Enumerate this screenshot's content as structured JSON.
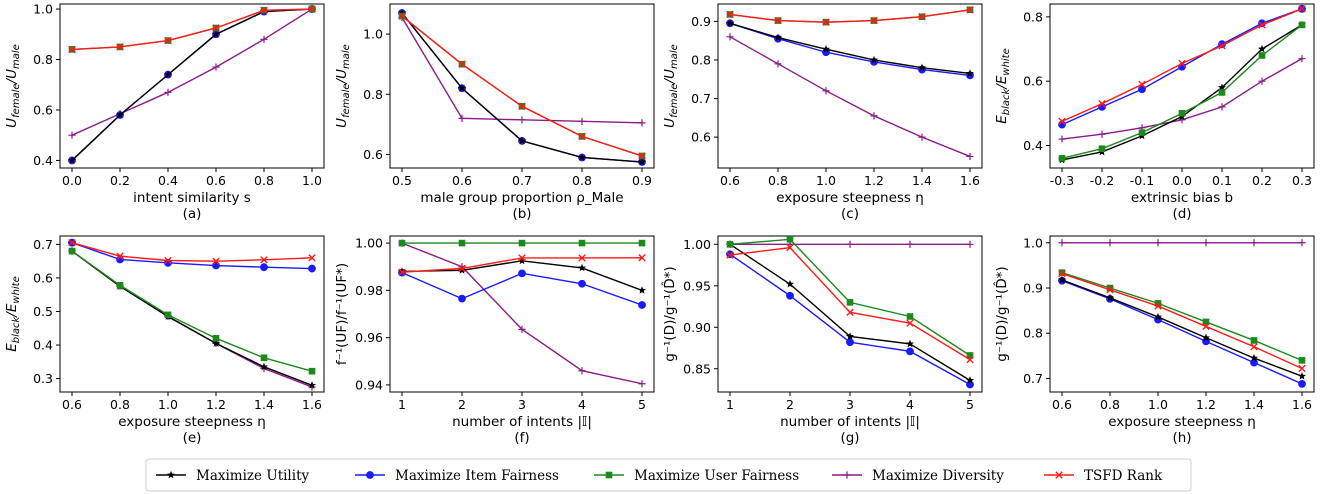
{
  "colors": {
    "Maximize Utility": "#000000",
    "Maximize Item Fairness": "#1a1aff",
    "Maximize User Fairness": "#1b8a1b",
    "Maximize Diversity": "#8b1a8b",
    "TSFD Rank": "#ff1a1a"
  },
  "markers": {
    "Maximize Utility": "star",
    "Maximize Item Fairness": "circle",
    "Maximize User Fairness": "square",
    "Maximize Diversity": "plus",
    "TSFD Rank": "cross"
  },
  "legend": {
    "items": [
      "Maximize Utility",
      "Maximize Item Fairness",
      "Maximize User Fairness",
      "Maximize Diversity",
      "TSFD Rank"
    ],
    "placement": "bottom-center"
  },
  "chart_data": [
    {
      "type": "line",
      "caption": "(a)",
      "xlabel": "intent similarity s",
      "ylabel": "U_female/U_male",
      "xlim": [
        -0.05,
        1.05
      ],
      "ylim": [
        0.37,
        1.02
      ],
      "xticks": [
        0.0,
        0.2,
        0.4,
        0.6,
        0.8,
        1.0
      ],
      "xtick_labels": [
        "0.0",
        "0.2",
        "0.4",
        "0.6",
        "0.8",
        "1.0"
      ],
      "yticks": [
        0.4,
        0.6,
        0.8,
        1.0
      ],
      "ytick_labels": [
        "0.4",
        "0.6",
        "0.8",
        "1.0"
      ],
      "x": [
        0.0,
        0.2,
        0.4,
        0.6,
        0.8,
        1.0
      ],
      "series": [
        {
          "name": "Maximize Utility",
          "values": [
            0.4,
            0.58,
            0.74,
            0.9,
            0.99,
            1.0
          ]
        },
        {
          "name": "Maximize Item Fairness",
          "values": [
            0.4,
            0.58,
            0.74,
            0.9,
            0.99,
            1.0
          ]
        },
        {
          "name": "Maximize User Fairness",
          "values": [
            0.84,
            0.85,
            0.875,
            0.925,
            0.995,
            1.0
          ]
        },
        {
          "name": "Maximize Diversity",
          "values": [
            0.5,
            0.585,
            0.67,
            0.77,
            0.88,
            1.0
          ]
        },
        {
          "name": "TSFD Rank",
          "values": [
            0.84,
            0.85,
            0.875,
            0.925,
            0.995,
            1.0
          ]
        }
      ]
    },
    {
      "type": "line",
      "caption": "(b)",
      "xlabel": "male group proportion ρ_Male",
      "ylabel": "U_female/U_male",
      "xlim": [
        0.48,
        0.92
      ],
      "ylim": [
        0.555,
        1.1
      ],
      "xticks": [
        0.5,
        0.6,
        0.7,
        0.8,
        0.9
      ],
      "xtick_labels": [
        "0.5",
        "0.6",
        "0.7",
        "0.8",
        "0.9"
      ],
      "yticks": [
        0.6,
        0.8,
        1.0
      ],
      "ytick_labels": [
        "0.6",
        "0.8",
        "1.0"
      ],
      "x": [
        0.5,
        0.6,
        0.7,
        0.8,
        0.9
      ],
      "series": [
        {
          "name": "Maximize Utility",
          "values": [
            1.07,
            0.82,
            0.645,
            0.59,
            0.575
          ]
        },
        {
          "name": "Maximize Item Fairness",
          "values": [
            1.07,
            0.82,
            0.645,
            0.59,
            0.575
          ]
        },
        {
          "name": "Maximize User Fairness",
          "values": [
            1.06,
            0.9,
            0.76,
            0.66,
            0.595
          ]
        },
        {
          "name": "Maximize Diversity",
          "values": [
            1.055,
            0.72,
            0.715,
            0.71,
            0.705
          ]
        },
        {
          "name": "TSFD Rank",
          "values": [
            1.06,
            0.9,
            0.76,
            0.66,
            0.595
          ]
        }
      ]
    },
    {
      "type": "line",
      "caption": "(c)",
      "xlabel": "exposure steepness η",
      "ylabel": "U_female/U_male",
      "xlim": [
        0.55,
        1.65
      ],
      "ylim": [
        0.52,
        0.945
      ],
      "xticks": [
        0.6,
        0.8,
        1.0,
        1.2,
        1.4,
        1.6
      ],
      "xtick_labels": [
        "0.6",
        "0.8",
        "1.0",
        "1.2",
        "1.4",
        "1.6"
      ],
      "yticks": [
        0.6,
        0.7,
        0.8,
        0.9
      ],
      "ytick_labels": [
        "0.6",
        "0.7",
        "0.8",
        "0.9"
      ],
      "x": [
        0.6,
        0.8,
        1.0,
        1.2,
        1.4,
        1.6
      ],
      "series": [
        {
          "name": "Maximize Utility",
          "values": [
            0.895,
            0.858,
            0.828,
            0.8,
            0.78,
            0.765
          ]
        },
        {
          "name": "Maximize Item Fairness",
          "values": [
            0.895,
            0.855,
            0.82,
            0.795,
            0.775,
            0.76
          ]
        },
        {
          "name": "Maximize User Fairness",
          "values": [
            0.918,
            0.902,
            0.898,
            0.902,
            0.912,
            0.93
          ]
        },
        {
          "name": "Maximize Diversity",
          "values": [
            0.86,
            0.79,
            0.72,
            0.655,
            0.6,
            0.55
          ]
        },
        {
          "name": "TSFD Rank",
          "values": [
            0.918,
            0.902,
            0.898,
            0.902,
            0.912,
            0.93
          ]
        }
      ]
    },
    {
      "type": "line",
      "caption": "(d)",
      "xlabel": "extrinsic bias b",
      "ylabel": "E_black/E_white",
      "xlim": [
        -0.33,
        0.33
      ],
      "ylim": [
        0.33,
        0.84
      ],
      "xticks": [
        -0.3,
        -0.2,
        -0.1,
        0.0,
        0.1,
        0.2,
        0.3
      ],
      "xtick_labels": [
        "-0.3",
        "-0.2",
        "-0.1",
        "0.0",
        "0.1",
        "0.2",
        "0.3"
      ],
      "yticks": [
        0.4,
        0.6,
        0.8
      ],
      "ytick_labels": [
        "0.4",
        "0.6",
        "0.8"
      ],
      "x": [
        -0.3,
        -0.2,
        -0.1,
        0.0,
        0.1,
        0.2,
        0.3
      ],
      "series": [
        {
          "name": "Maximize Utility",
          "values": [
            0.355,
            0.38,
            0.43,
            0.49,
            0.58,
            0.7,
            0.775
          ]
        },
        {
          "name": "Maximize Item Fairness",
          "values": [
            0.465,
            0.52,
            0.575,
            0.645,
            0.715,
            0.78,
            0.825
          ]
        },
        {
          "name": "Maximize User Fairness",
          "values": [
            0.36,
            0.39,
            0.44,
            0.5,
            0.565,
            0.68,
            0.775
          ]
        },
        {
          "name": "Maximize Diversity",
          "values": [
            0.42,
            0.435,
            0.455,
            0.48,
            0.52,
            0.6,
            0.67
          ]
        },
        {
          "name": "TSFD Rank",
          "values": [
            0.475,
            0.53,
            0.59,
            0.655,
            0.71,
            0.775,
            0.825
          ]
        }
      ]
    },
    {
      "type": "line",
      "caption": "(e)",
      "xlabel": "exposure steepness η",
      "ylabel": "E_black/E_white",
      "xlim": [
        0.55,
        1.65
      ],
      "ylim": [
        0.26,
        0.725
      ],
      "xticks": [
        0.6,
        0.8,
        1.0,
        1.2,
        1.4,
        1.6
      ],
      "xtick_labels": [
        "0.6",
        "0.8",
        "1.0",
        "1.2",
        "1.4",
        "1.6"
      ],
      "yticks": [
        0.3,
        0.4,
        0.5,
        0.6,
        0.7
      ],
      "ytick_labels": [
        "0.3",
        "0.4",
        "0.5",
        "0.6",
        "0.7"
      ],
      "x": [
        0.6,
        0.8,
        1.0,
        1.2,
        1.4,
        1.6
      ],
      "series": [
        {
          "name": "Maximize Utility",
          "values": [
            0.68,
            0.575,
            0.485,
            0.405,
            0.335,
            0.28
          ]
        },
        {
          "name": "Maximize Item Fairness",
          "values": [
            0.705,
            0.655,
            0.645,
            0.637,
            0.632,
            0.628
          ]
        },
        {
          "name": "Maximize User Fairness",
          "values": [
            0.68,
            0.578,
            0.49,
            0.42,
            0.362,
            0.322
          ]
        },
        {
          "name": "Maximize Diversity",
          "values": [
            0.68,
            0.575,
            0.485,
            0.405,
            0.33,
            0.275
          ]
        },
        {
          "name": "TSFD Rank",
          "values": [
            0.705,
            0.665,
            0.652,
            0.65,
            0.654,
            0.66
          ]
        }
      ]
    },
    {
      "type": "line",
      "caption": "(f)",
      "xlabel": "number of intents |𝕀|",
      "ylabel": "f⁻¹(UF)/f⁻¹(UF*)",
      "xlim": [
        0.8,
        5.2
      ],
      "ylim": [
        0.937,
        1.003
      ],
      "xticks": [
        1,
        2,
        3,
        4,
        5
      ],
      "xtick_labels": [
        "1",
        "2",
        "3",
        "4",
        "5"
      ],
      "yticks": [
        0.94,
        0.96,
        0.98,
        1.0
      ],
      "ytick_labels": [
        "0.94",
        "0.96",
        "0.98",
        "1.00"
      ],
      "x": [
        1,
        2,
        3,
        4,
        5
      ],
      "series": [
        {
          "name": "Maximize Utility",
          "values": [
            0.988,
            0.9885,
            0.9925,
            0.9895,
            0.98
          ]
        },
        {
          "name": "Maximize Item Fairness",
          "values": [
            0.9875,
            0.9765,
            0.9872,
            0.9828,
            0.9738
          ]
        },
        {
          "name": "Maximize User Fairness",
          "values": [
            1.0,
            1.0,
            1.0,
            1.0,
            1.0
          ]
        },
        {
          "name": "Maximize Diversity",
          "values": [
            1.0,
            0.99,
            0.9635,
            0.946,
            0.9405
          ]
        },
        {
          "name": "TSFD Rank",
          "values": [
            0.9877,
            0.9893,
            0.9937,
            0.9937,
            0.9938
          ]
        }
      ]
    },
    {
      "type": "line",
      "caption": "(g)",
      "xlabel": "number of intents |𝕀|",
      "ylabel": "g⁻¹(D)/g⁻¹(D̂*)",
      "xlim": [
        0.8,
        5.2
      ],
      "ylim": [
        0.822,
        1.01
      ],
      "xticks": [
        1,
        2,
        3,
        4,
        5
      ],
      "xtick_labels": [
        "1",
        "2",
        "3",
        "4",
        "5"
      ],
      "yticks": [
        0.85,
        0.9,
        0.95,
        1.0
      ],
      "ytick_labels": [
        "0.85",
        "0.90",
        "0.95",
        "1.00"
      ],
      "x": [
        1,
        2,
        3,
        4,
        5
      ],
      "series": [
        {
          "name": "Maximize Utility",
          "values": [
            1.0,
            0.952,
            0.889,
            0.88,
            0.836
          ]
        },
        {
          "name": "Maximize Item Fairness",
          "values": [
            0.988,
            0.938,
            0.882,
            0.871,
            0.831
          ]
        },
        {
          "name": "Maximize User Fairness",
          "values": [
            1.0,
            1.006,
            0.93,
            0.913,
            0.866
          ]
        },
        {
          "name": "Maximize Diversity",
          "values": [
            1.0,
            1.0,
            1.0,
            1.0,
            1.0
          ]
        },
        {
          "name": "TSFD Rank",
          "values": [
            0.987,
            0.996,
            0.918,
            0.905,
            0.861
          ]
        }
      ]
    },
    {
      "type": "line",
      "caption": "(h)",
      "xlabel": "exposure steepness η",
      "ylabel": "g⁻¹(D)/g⁻¹(D̂*)",
      "xlim": [
        0.55,
        1.65
      ],
      "ylim": [
        0.67,
        1.015
      ],
      "xticks": [
        0.6,
        0.8,
        1.0,
        1.2,
        1.4,
        1.6
      ],
      "xtick_labels": [
        "0.6",
        "0.8",
        "1.0",
        "1.2",
        "1.4",
        "1.6"
      ],
      "yticks": [
        0.7,
        0.8,
        0.9,
        1.0
      ],
      "ytick_labels": [
        "0.7",
        "0.8",
        "0.9",
        "1.0"
      ],
      "x": [
        0.6,
        0.8,
        1.0,
        1.2,
        1.4,
        1.6
      ],
      "series": [
        {
          "name": "Maximize Utility",
          "values": [
            0.918,
            0.878,
            0.836,
            0.79,
            0.745,
            0.705
          ]
        },
        {
          "name": "Maximize Item Fairness",
          "values": [
            0.916,
            0.876,
            0.83,
            0.782,
            0.735,
            0.688
          ]
        },
        {
          "name": "Maximize User Fairness",
          "values": [
            0.934,
            0.9,
            0.866,
            0.825,
            0.784,
            0.74
          ]
        },
        {
          "name": "Maximize Diversity",
          "values": [
            1.0,
            1.0,
            1.0,
            1.0,
            1.0,
            1.0
          ]
        },
        {
          "name": "TSFD Rank",
          "values": [
            0.932,
            0.896,
            0.86,
            0.815,
            0.77,
            0.722
          ]
        }
      ]
    }
  ]
}
